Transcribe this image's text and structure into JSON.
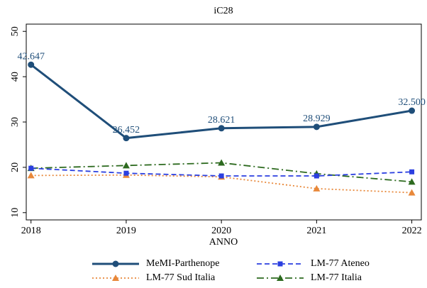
{
  "chart_data": {
    "type": "line",
    "title": "iC28",
    "x_label": "ANNO",
    "x": [
      2018,
      2019,
      2020,
      2021,
      2022
    ],
    "xlim": [
      2017.95,
      2022.1
    ],
    "xticks": [
      2018,
      2019,
      2020,
      2021,
      2022
    ],
    "ylim": [
      8.4,
      51.6
    ],
    "yticks": [
      10,
      20,
      30,
      40,
      50
    ],
    "series": [
      {
        "name": "MeMI-Parthenope",
        "color": "#1f4e79",
        "dash": "solid",
        "marker": "circle",
        "values": [
          42.647,
          26.452,
          28.621,
          28.929,
          32.5
        ],
        "value_labels": [
          "42.647",
          "26.452",
          "28.621",
          "28.929",
          "32.500"
        ]
      },
      {
        "name": "LM-77 Ateneo",
        "color": "#2b3fe0",
        "dash": "dashed",
        "marker": "square",
        "values": [
          19.8,
          18.7,
          18.1,
          18.1,
          19.0
        ]
      },
      {
        "name": "LM-77 Sud Italia",
        "color": "#e8883a",
        "dash": "dotted",
        "marker": "triangle",
        "values": [
          18.2,
          18.3,
          17.9,
          15.3,
          14.4
        ]
      },
      {
        "name": "LM-77 Italia",
        "color": "#2d6a1f",
        "dash": "dashdot",
        "marker": "triangle",
        "values": [
          19.8,
          20.4,
          21.0,
          18.6,
          16.8
        ]
      }
    ]
  }
}
